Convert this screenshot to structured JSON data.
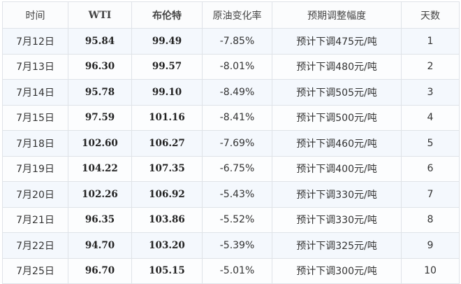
{
  "headers": [
    "时间",
    "WTI",
    "布伦特",
    "原油变化率",
    "预期调整幅度",
    "天数"
  ],
  "rows": [
    [
      "7月12日",
      "95.84",
      "99.49",
      "-7.85%",
      "预计下调475元/吨",
      "1"
    ],
    [
      "7月13日",
      "96.30",
      "99.57",
      "-8.01%",
      "预计下调480元/吨",
      "2"
    ],
    [
      "7月14日",
      "95.78",
      "99.10",
      "-8.49%",
      "预计下调505元/吨",
      "3"
    ],
    [
      "7月15日",
      "97.59",
      "101.16",
      "-8.41%",
      "预计下调500元/吨",
      "4"
    ],
    [
      "7月18日",
      "102.60",
      "106.27",
      "-7.69%",
      "预计下调460元/吨",
      "5"
    ],
    [
      "7月19日",
      "104.22",
      "107.35",
      "-6.75%",
      "预计下调400元/吨",
      "6"
    ],
    [
      "7月20日",
      "102.26",
      "106.92",
      "-5.43%",
      "预计下调330元/吨",
      "7"
    ],
    [
      "7月21日",
      "96.35",
      "103.86",
      "-5.52%",
      "预计下调330元/吨",
      "8"
    ],
    [
      "7月22日",
      "94.70",
      "103.20",
      "-5.39%",
      "预计下调325元/吨",
      "9"
    ],
    [
      "7月25日",
      "96.70",
      "105.15",
      "-5.01%",
      "预计下调300元/吨",
      "10"
    ]
  ]
}
